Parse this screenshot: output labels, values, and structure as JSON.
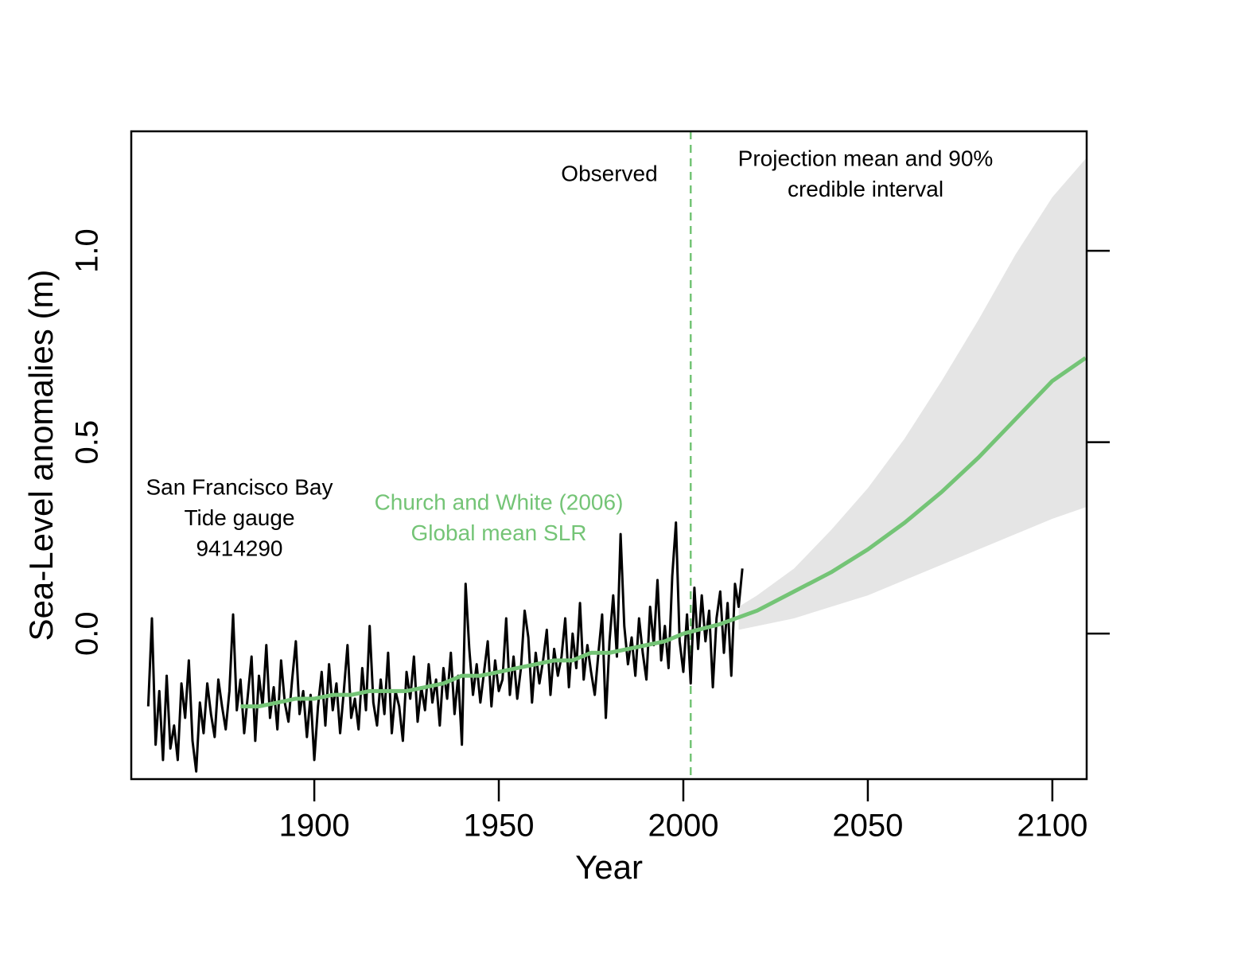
{
  "chart_data": {
    "type": "line",
    "xlabel": "Year",
    "ylabel": "Sea-Level anomalies (m)",
    "xlim": [
      1850.4,
      2109.3
    ],
    "ylim": [
      -0.38,
      1.312
    ],
    "xticks": [
      1900,
      1950,
      2000,
      2050,
      2100
    ],
    "yticks": [
      {
        "value": 0,
        "label": "0.0"
      },
      {
        "value": 0.5,
        "label": "0.5"
      },
      {
        "value": 1,
        "label": "1.0"
      }
    ],
    "series": [
      {
        "color": "#000000",
        "x": [
          1855,
          1856,
          1857,
          1858,
          1859,
          1860,
          1861,
          1862,
          1863,
          1864,
          1865,
          1866,
          1867,
          1868,
          1869,
          1870,
          1871,
          1872,
          1873,
          1874,
          1875,
          1876,
          1877,
          1878,
          1879,
          1880,
          1881,
          1882,
          1883,
          1884,
          1885,
          1886,
          1887,
          1888,
          1889,
          1890,
          1891,
          1892,
          1893,
          1894,
          1895,
          1896,
          1897,
          1898,
          1899,
          1900,
          1901,
          1902,
          1903,
          1904,
          1905,
          1906,
          1907,
          1908,
          1909,
          1910,
          1911,
          1912,
          1913,
          1914,
          1915,
          1916,
          1917,
          1918,
          1919,
          1920,
          1921,
          1922,
          1923,
          1924,
          1925,
          1926,
          1927,
          1928,
          1929,
          1930,
          1931,
          1932,
          1933,
          1934,
          1935,
          1936,
          1937,
          1938,
          1939,
          1940,
          1941,
          1942,
          1943,
          1944,
          1945,
          1946,
          1947,
          1948,
          1949,
          1950,
          1951,
          1952,
          1953,
          1954,
          1955,
          1956,
          1957,
          1958,
          1959,
          1960,
          1961,
          1962,
          1963,
          1964,
          1965,
          1966,
          1967,
          1968,
          1969,
          1970,
          1971,
          1972,
          1973,
          1974,
          1975,
          1976,
          1977,
          1978,
          1979,
          1980,
          1981,
          1982,
          1983,
          1984,
          1985,
          1986,
          1987,
          1988,
          1989,
          1990,
          1991,
          1992,
          1993,
          1994,
          1995,
          1996,
          1997,
          1998,
          1999,
          2000,
          2001,
          2002,
          2003,
          2004,
          2005,
          2006,
          2007,
          2008,
          2009,
          2010,
          2011,
          2012,
          2013,
          2014,
          2015,
          2016
        ],
        "values": [
          -0.19,
          0.04,
          -0.29,
          -0.15,
          -0.33,
          -0.11,
          -0.3,
          -0.24,
          -0.33,
          -0.13,
          -0.22,
          -0.07,
          -0.28,
          -0.36,
          -0.18,
          -0.26,
          -0.13,
          -0.21,
          -0.27,
          -0.12,
          -0.19,
          -0.25,
          -0.15,
          0.05,
          -0.2,
          -0.12,
          -0.26,
          -0.16,
          -0.06,
          -0.28,
          -0.11,
          -0.19,
          -0.03,
          -0.22,
          -0.14,
          -0.25,
          -0.07,
          -0.18,
          -0.23,
          -0.12,
          -0.02,
          -0.21,
          -0.15,
          -0.27,
          -0.16,
          -0.33,
          -0.19,
          -0.1,
          -0.24,
          -0.08,
          -0.2,
          -0.13,
          -0.26,
          -0.15,
          -0.03,
          -0.22,
          -0.17,
          -0.25,
          -0.09,
          -0.2,
          0.02,
          -0.18,
          -0.24,
          -0.12,
          -0.21,
          -0.05,
          -0.26,
          -0.15,
          -0.19,
          -0.28,
          -0.1,
          -0.17,
          -0.06,
          -0.23,
          -0.14,
          -0.2,
          -0.08,
          -0.18,
          -0.12,
          -0.24,
          -0.09,
          -0.17,
          -0.05,
          -0.21,
          -0.11,
          -0.29,
          0.13,
          -0.04,
          -0.16,
          -0.08,
          -0.18,
          -0.1,
          -0.02,
          -0.19,
          -0.07,
          -0.15,
          -0.12,
          0.04,
          -0.16,
          -0.06,
          -0.17,
          -0.09,
          0.06,
          -0.01,
          -0.18,
          -0.05,
          -0.13,
          -0.07,
          0.01,
          -0.16,
          -0.04,
          -0.11,
          -0.06,
          0.04,
          -0.14,
          0.0,
          -0.09,
          0.08,
          -0.12,
          -0.03,
          -0.1,
          -0.16,
          -0.05,
          0.05,
          -0.22,
          -0.02,
          0.1,
          -0.06,
          0.26,
          0.02,
          -0.08,
          -0.01,
          -0.11,
          0.04,
          -0.05,
          -0.12,
          0.07,
          -0.03,
          0.14,
          -0.07,
          0.02,
          -0.09,
          0.15,
          0.29,
          -0.02,
          -0.1,
          0.05,
          -0.13,
          0.12,
          -0.04,
          0.1,
          -0.02,
          0.06,
          -0.14,
          0.04,
          0.11,
          -0.05,
          0.08,
          -0.11,
          0.13,
          0.07,
          0.17
        ]
      },
      {
        "color": "#74c476",
        "x": [
          1880,
          1885,
          1890,
          1895,
          1900,
          1905,
          1910,
          1915,
          1920,
          1925,
          1930,
          1935,
          1940,
          1945,
          1950,
          1955,
          1960,
          1965,
          1970,
          1975,
          1980,
          1985,
          1990,
          1995,
          2000
        ],
        "values": [
          -0.19,
          -0.19,
          -0.18,
          -0.17,
          -0.17,
          -0.16,
          -0.16,
          -0.15,
          -0.15,
          -0.15,
          -0.14,
          -0.13,
          -0.11,
          -0.11,
          -0.1,
          -0.09,
          -0.08,
          -0.07,
          -0.07,
          -0.05,
          -0.05,
          -0.04,
          -0.03,
          -0.02,
          0.0
        ]
      },
      {
        "color": "#74c476",
        "x": [
          2000,
          2010,
          2020,
          2030,
          2040,
          2050,
          2060,
          2070,
          2080,
          2090,
          2100,
          2109
        ],
        "values": [
          0.0,
          0.025,
          0.06,
          0.11,
          0.16,
          0.22,
          0.29,
          0.37,
          0.46,
          0.56,
          0.66,
          0.72
        ]
      }
    ],
    "band": {
      "color": "#e5e5e5",
      "x": [
        2015,
        2020,
        2030,
        2040,
        2050,
        2060,
        2070,
        2080,
        2090,
        2100,
        2109
      ],
      "lower": [
        0.01,
        0.02,
        0.04,
        0.07,
        0.1,
        0.14,
        0.18,
        0.22,
        0.26,
        0.3,
        0.33
      ],
      "upper": [
        0.07,
        0.1,
        0.17,
        0.27,
        0.38,
        0.51,
        0.66,
        0.82,
        0.99,
        1.14,
        1.24
      ]
    },
    "vline": {
      "x": 2002,
      "color": "#74c476"
    },
    "annotations": [
      {
        "lines": [
          "Observed"
        ],
        "color": "#000000"
      },
      {
        "lines": [
          "Projection mean and 90%",
          "credible interval"
        ],
        "color": "#000000"
      },
      {
        "lines": [
          "San Francisco Bay",
          "Tide gauge",
          "9414290"
        ],
        "color": "#000000"
      },
      {
        "lines": [
          "Church and White (2006)",
          "Global mean SLR"
        ],
        "color": "#74c476"
      }
    ]
  }
}
